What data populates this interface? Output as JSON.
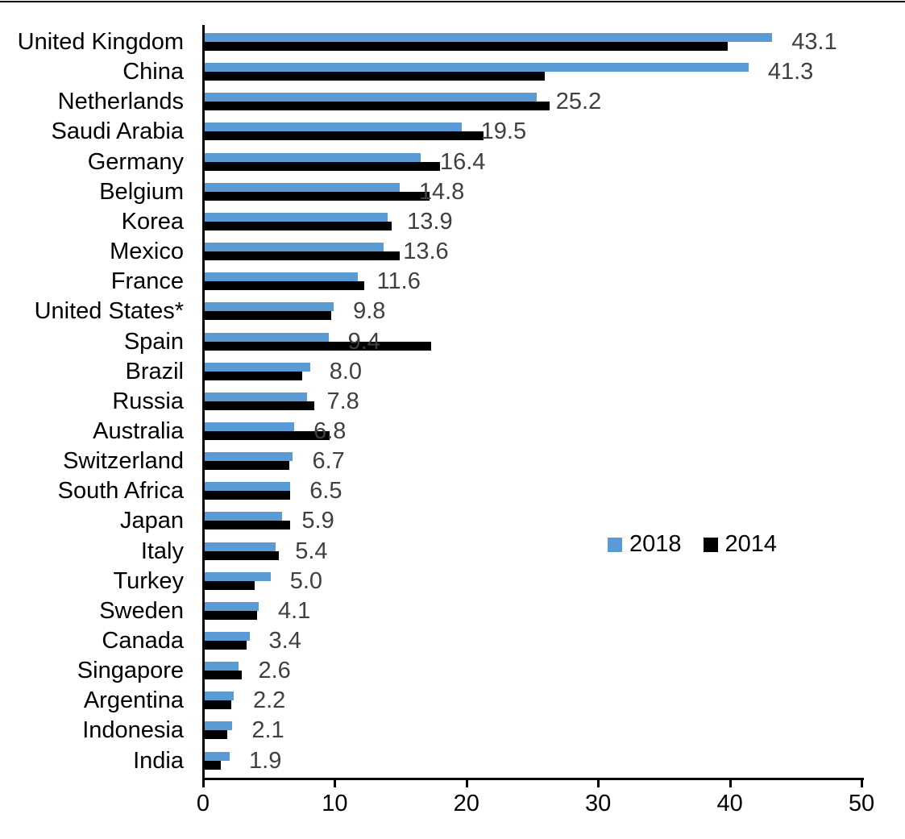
{
  "chart_data": {
    "type": "bar",
    "orientation": "horizontal",
    "title": "",
    "xlabel": "",
    "ylabel": "",
    "xlim": [
      0,
      50
    ],
    "x_ticks": [
      0,
      10,
      20,
      30,
      40,
      50
    ],
    "x_tick_labels": [
      "0",
      "10",
      "20",
      "30",
      "40",
      "50"
    ],
    "grid": false,
    "legend_position": "center-right",
    "categories": [
      "United Kingdom",
      "China",
      "Netherlands",
      "Saudi Arabia",
      "Germany",
      "Belgium",
      "Korea",
      "Mexico",
      "France",
      "United States*",
      "Spain",
      "Brazil",
      "Russia",
      "Australia",
      "Switzerland",
      "South Africa",
      "Japan",
      "Italy",
      "Turkey",
      "Sweden",
      "Canada",
      "Singapore",
      "Argentina",
      "Indonesia",
      "India"
    ],
    "series": [
      {
        "name": "2018",
        "color": "#5B9BD5",
        "values": [
          43.1,
          41.3,
          25.2,
          19.5,
          16.4,
          14.8,
          13.9,
          13.6,
          11.6,
          9.8,
          9.4,
          8.0,
          7.8,
          6.8,
          6.7,
          6.5,
          5.9,
          5.4,
          5.0,
          4.1,
          3.4,
          2.6,
          2.2,
          2.1,
          1.9
        ],
        "data_labels": [
          "43.1",
          "41.3",
          "25.2",
          "19.5",
          "16.4",
          "14.8",
          "13.9",
          "13.6",
          "11.6",
          "9.8",
          "9.4",
          "8.0",
          "7.8",
          "6.8",
          "6.7",
          "6.5",
          "5.9",
          "5.4",
          "5.0",
          "4.1",
          "3.4",
          "2.6",
          "2.2",
          "2.1",
          "1.9"
        ]
      },
      {
        "name": "2014",
        "color": "#000000",
        "values": [
          39.7,
          25.8,
          26.2,
          21.2,
          17.9,
          17.1,
          14.2,
          14.8,
          12.1,
          9.6,
          17.2,
          7.4,
          8.3,
          9.5,
          6.4,
          6.5,
          6.5,
          5.6,
          3.8,
          4.0,
          3.2,
          2.8,
          2.0,
          1.7,
          1.2
        ],
        "data_labels": []
      }
    ]
  },
  "legend": {
    "items": [
      {
        "label": "2018",
        "color": "#5B9BD5"
      },
      {
        "label": "2014",
        "color": "#000000"
      }
    ]
  },
  "colors": {
    "bar_2018": "#5B9BD5",
    "bar_2014": "#000000",
    "value_label": "#404040",
    "axis": "#000000"
  }
}
